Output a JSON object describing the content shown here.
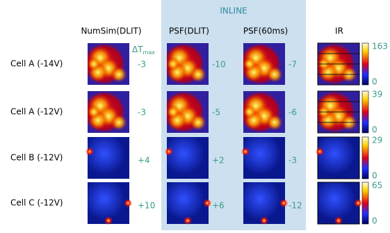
{
  "header": {
    "group": "INLINE",
    "columns": [
      "NumSim(DLIT)",
      "PSF(DLIT)",
      "PSF(60ms)",
      "IR"
    ],
    "delta_label": "ΔT",
    "delta_sub": "max"
  },
  "rows": [
    {
      "label": "Cell A (-14V)",
      "values": [
        "-3",
        "-10",
        "-7"
      ],
      "ir_max": "163",
      "ir_min": "0"
    },
    {
      "label": "Cell A (-12V)",
      "values": [
        "-3",
        "-5",
        "-6"
      ],
      "ir_max": "39",
      "ir_min": "0"
    },
    {
      "label": "Cell B (-12V)",
      "values": [
        "+4",
        "+2",
        "-3"
      ],
      "ir_max": "29",
      "ir_min": "0"
    },
    {
      "label": "Cell C (-12V)",
      "values": [
        "+10",
        "+6",
        "-12"
      ],
      "ir_max": "65",
      "ir_min": "0"
    }
  ]
}
